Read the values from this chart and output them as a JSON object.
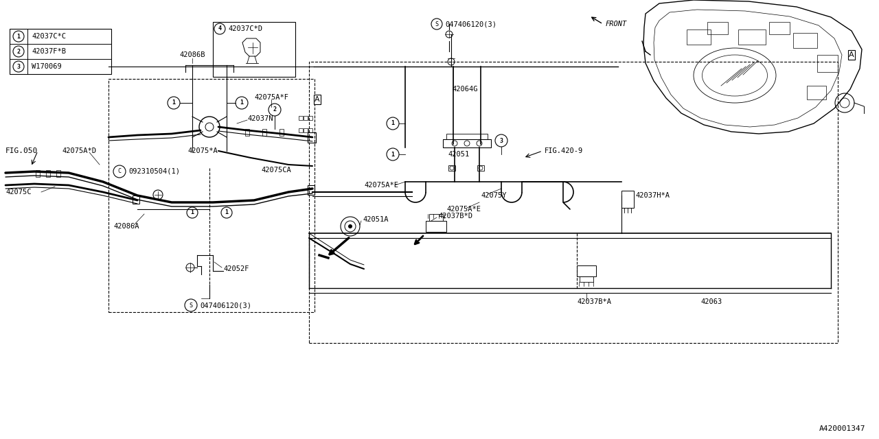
{
  "bg_color": "#ffffff",
  "lc": "#000000",
  "diagram_code": "A420001347",
  "legend_items": [
    {
      "num": "1",
      "code": "42037C*C"
    },
    {
      "num": "2",
      "code": "42037F*B"
    },
    {
      "num": "3",
      "code": "W170069"
    }
  ],
  "part4_code": "42037C*D",
  "fs": 7.5
}
